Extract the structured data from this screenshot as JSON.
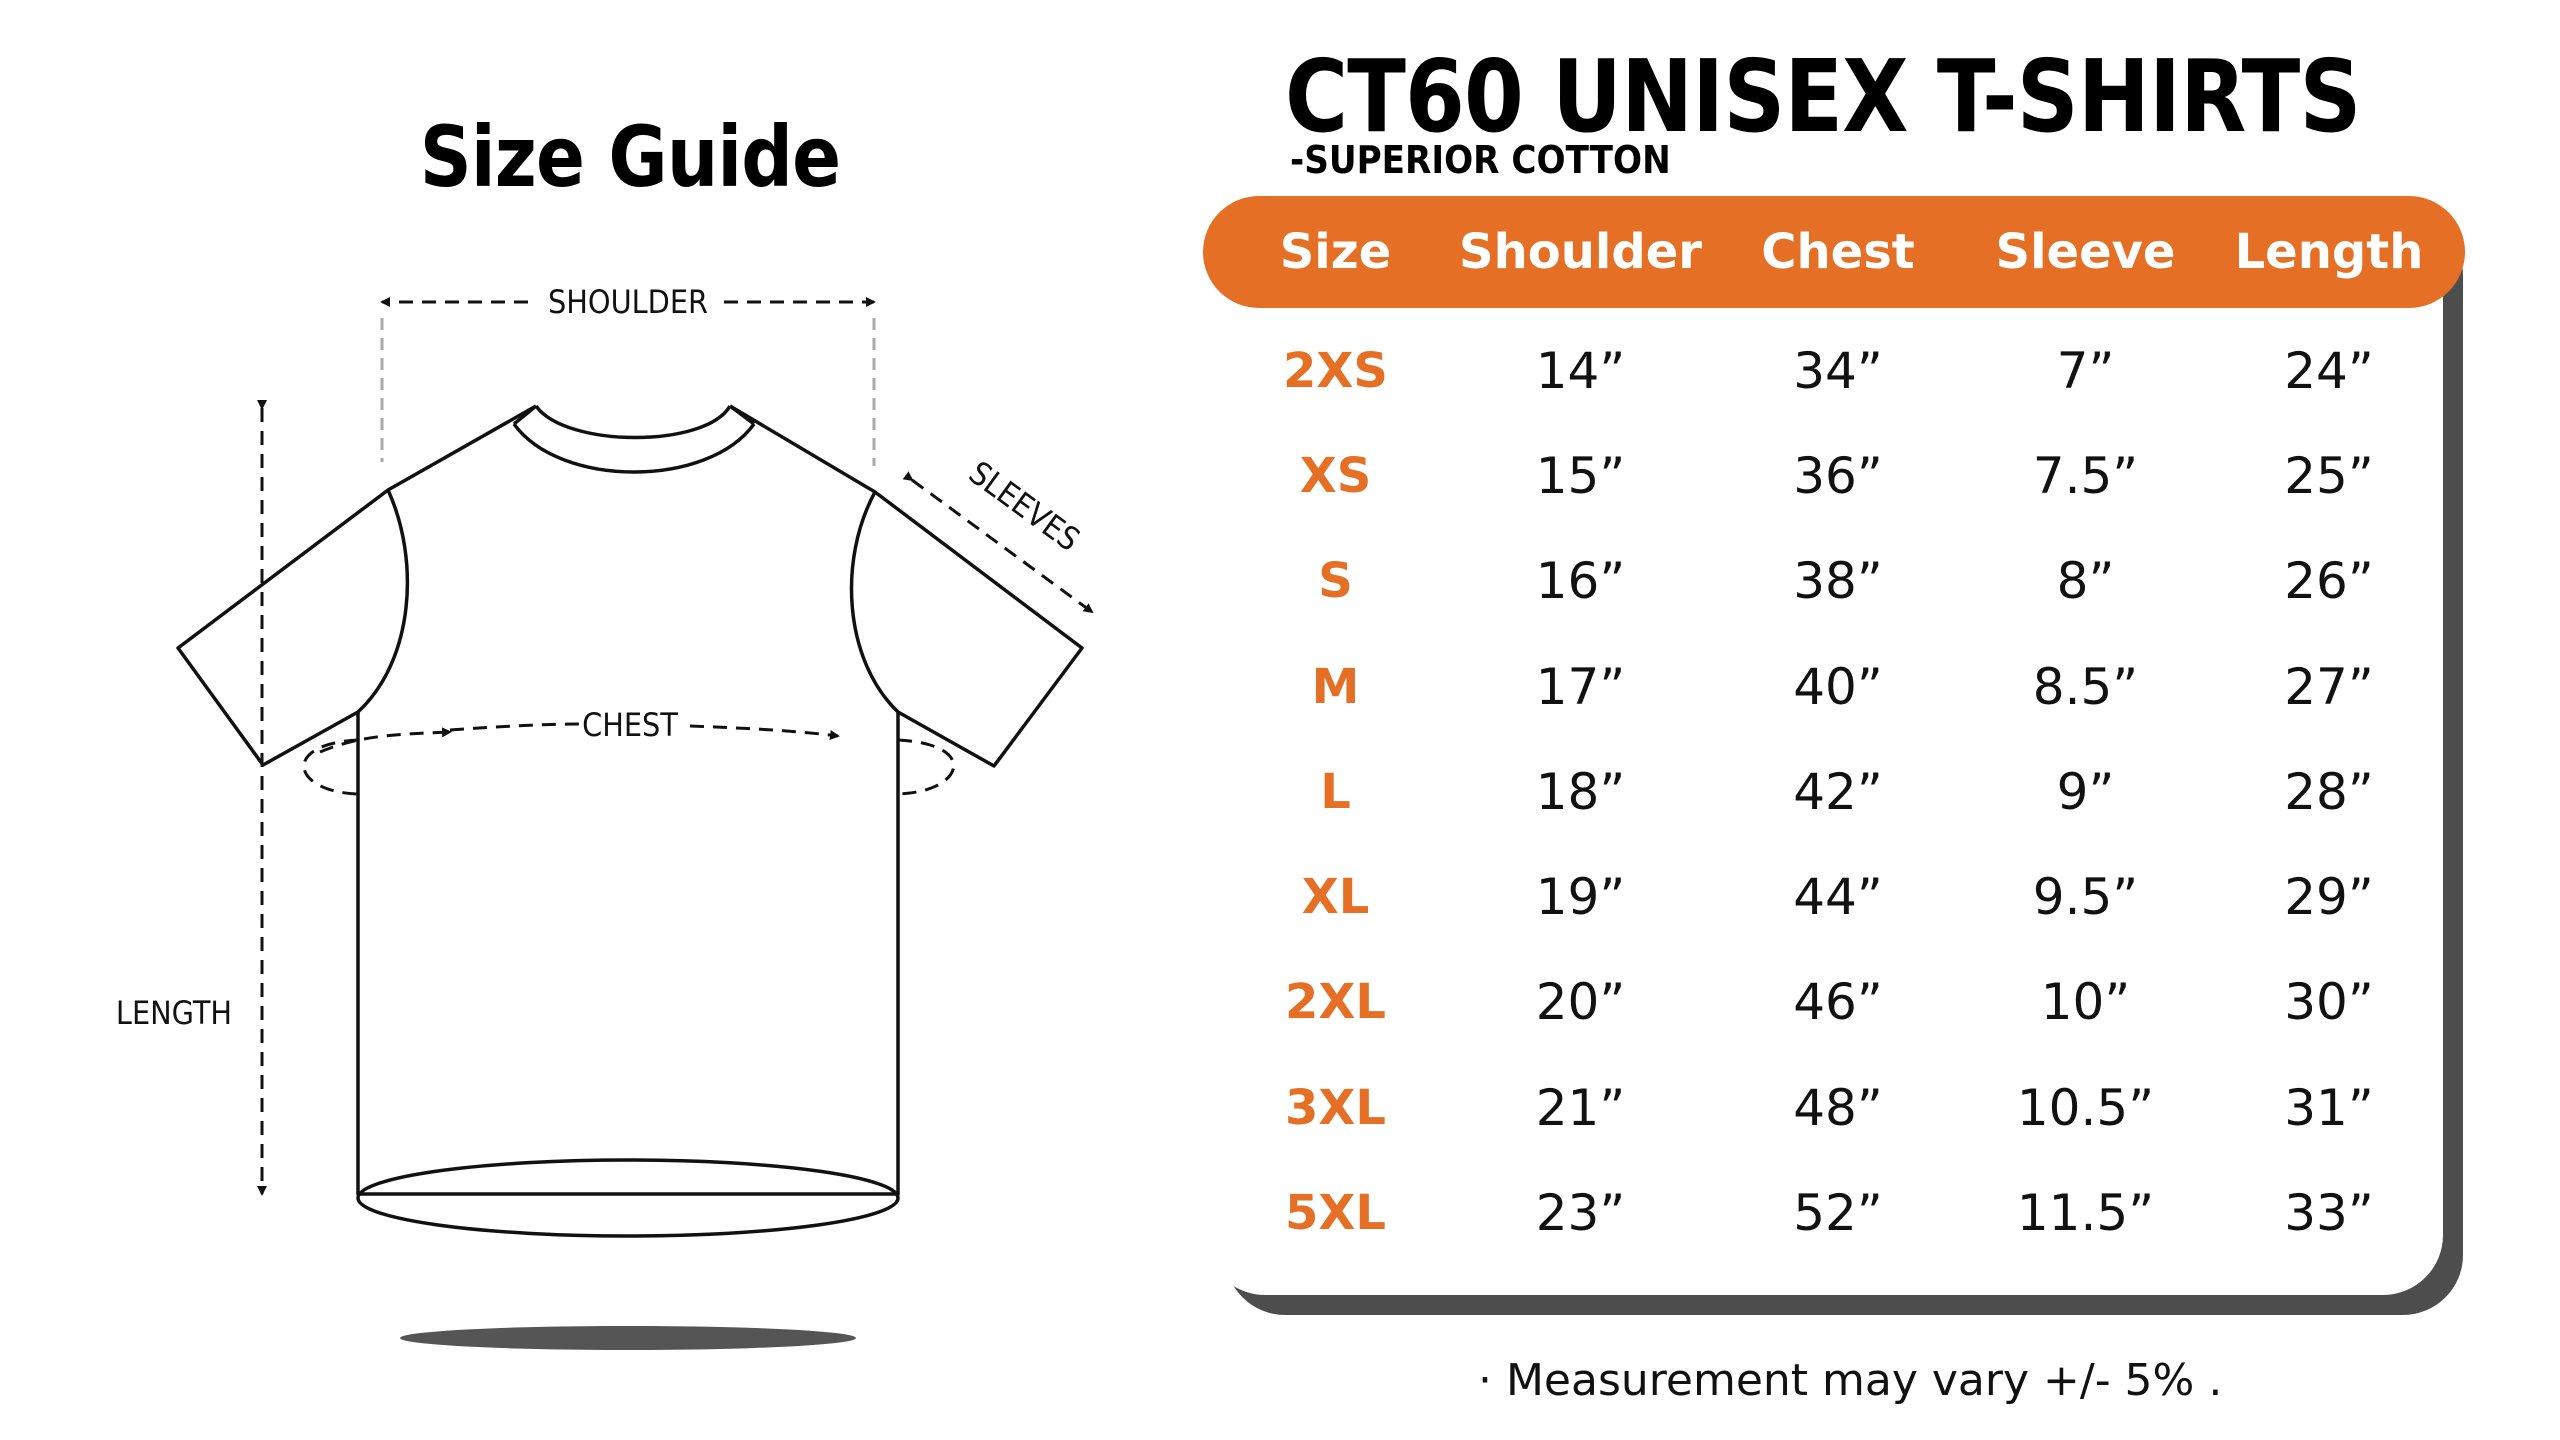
{
  "guide_title": "Size Guide",
  "diagram": {
    "shoulder_label": "SHOULDER",
    "sleeves_label": "SLEEVES",
    "chest_label": "CHEST",
    "length_label": "LENGTH"
  },
  "product": {
    "title": "CT60 UNISEX T-SHIRTS",
    "subtitle": "-SUPERIOR COTTON"
  },
  "colors": {
    "accent": "#e56f25",
    "shadow": "#4d4d4d",
    "text": "#111111"
  },
  "table": {
    "headers": [
      "Size",
      "Shoulder",
      "Chest",
      "Sleeve",
      "Length"
    ],
    "rows": [
      [
        "2XS",
        "14”",
        "34”",
        "7”",
        "24”"
      ],
      [
        "XS",
        "15”",
        "36”",
        "7.5”",
        "25”"
      ],
      [
        "S",
        "16”",
        "38”",
        "8”",
        "26”"
      ],
      [
        "M",
        "17”",
        "40”",
        "8.5”",
        "27”"
      ],
      [
        "L",
        "18”",
        "42”",
        "9”",
        "28”"
      ],
      [
        "XL",
        "19”",
        "44”",
        "9.5”",
        "29”"
      ],
      [
        "2XL",
        "20”",
        "46”",
        "10”",
        "30”"
      ],
      [
        "3XL",
        "21”",
        "48”",
        "10.5”",
        "31”"
      ],
      [
        "5XL",
        "23”",
        "52”",
        "11.5”",
        "33”"
      ]
    ]
  },
  "footnote": "· Measurement may vary +/- 5% ."
}
